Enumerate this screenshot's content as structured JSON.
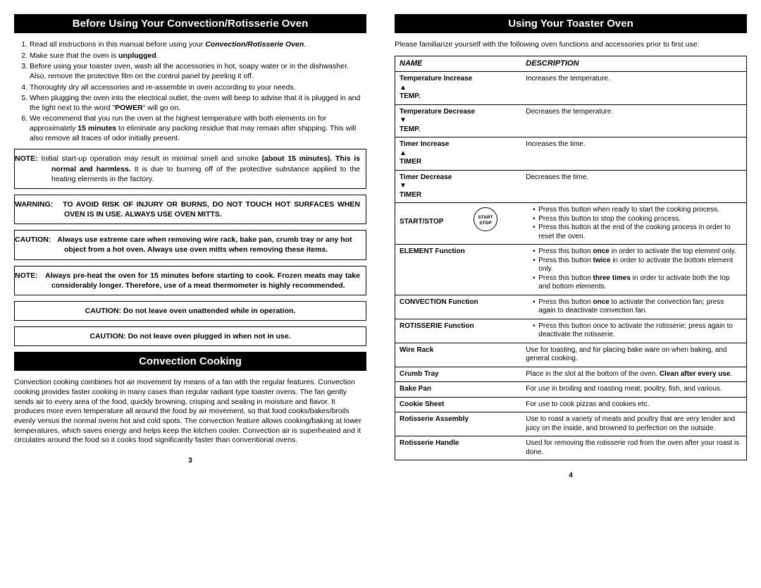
{
  "left": {
    "header1": "Before Using Your Convection/Rotisserie Oven",
    "instructions": [
      {
        "pre": "Read all instructions in this manual before using your ",
        "bold_italic": "Convection/Rotisserie Oven",
        "post": "."
      },
      {
        "pre": "Make sure that the oven is ",
        "bold": "unplugged",
        "post": "."
      },
      {
        "text": "Before using your toaster oven, wash all the accessories in hot, soapy water or in the dishwasher.  Also, remove the protective film on the control panel by peeling it off."
      },
      {
        "text": "Thoroughly dry all accessories and re-assemble in oven according to your needs."
      },
      {
        "pre": "When plugging the oven into the electrical outlet, the oven will beep to advise that it is plugged in and the light next to the word \"",
        "bold": "POWER",
        "post": "\" will go on."
      },
      {
        "pre": "We recommend that you run the oven at the highest temperature with both elements on for approximately ",
        "bold": "15 minutes",
        "post": " to eliminate any packing residue that may remain after shipping. This will also remove all traces of odor initially present."
      }
    ],
    "note1_label": "NOTE:",
    "note1_line1": "Initial start-up operation may result in minimal smell and smoke ",
    "note1_bold": "(about 15 minutes). This is normal and harmless.",
    "note1_line2": "  It is due to burning off of the protective substance applied  to the heating elements in the factory.",
    "warning_label": "WARNING:",
    "warning_text": "TO AVOID RISK OF INJURY OR BURNS, DO NOT TOUCH HOT SURFACES WHEN OVEN IS IN USE. ALWAYS USE OVEN MITTS.",
    "caution1_label": "CAUTION:",
    "caution1_text": "Always use extreme care when removing wire rack, bake pan, crumb tray or any hot object from a hot oven. Always use oven mitts when removing these items.",
    "note2_label": "NOTE:",
    "note2_text": "Always pre-heat the oven for 15 minutes before starting to cook. Frozen meats may take considerably longer.  Therefore, use of a meat thermometer is highly recommended.",
    "caution2": "CAUTION:  Do not leave oven unattended while in operation.",
    "caution3": "CAUTION:  Do not leave oven plugged in when not in use.",
    "header2": "Convection Cooking",
    "body": "Convection cooking combines hot air movement by means of a fan with the regular features. Convection cooking provides faster cooking in many cases than regular radiant type toaster ovens. The fan gently sends air to every area of the food, quickly browning, crisping and sealing in moisture and flavor. It produces more even temperature all around the food by air movement, so that food cooks/bakes/broils evenly versus the normal ovens hot and cold spots. The convection feature allows cooking/baking at lower temperatures, which saves energy and helps keep the kitchen cooler. Convection air is superheated and it circulates around the food so it cooks food significantly faster than conventional ovens.",
    "page_num": "3"
  },
  "right": {
    "header": "Using Your Toaster Oven",
    "intro": "Please familiarize yourself with the following oven functions and accessories prior to first use:",
    "name_header": "NAME",
    "desc_header": "DESCRIPTION",
    "rows": [
      {
        "name": "Temperature Increase",
        "sym": "▲",
        "sub": "TEMP.",
        "desc": "Increases the temperature."
      },
      {
        "name": "Temperature Decrease",
        "sym": "▼",
        "sub": "TEMP.",
        "desc": "Decreases the temperature."
      },
      {
        "name": "Timer Increase",
        "sym": "▲",
        "sub": "TIMER",
        "desc": "Increases the time."
      },
      {
        "name": "Timer Decrease",
        "sym": "▼",
        "sub": "TIMER",
        "desc": "Decreases the time."
      }
    ],
    "startstop_name": "START/STOP",
    "startstop_btn1": "START",
    "startstop_btn2": "STOP",
    "startstop_b1": "Press this button when ready to start the cooking process.",
    "startstop_b2": "Press this button to stop the cooking process.",
    "startstop_b3": "Press this button at the end of the cooking process in order to reset the oven.",
    "element_name": "ELEMENT Function",
    "element_b1a": "Press this button ",
    "element_b1b": "once",
    "element_b1c": " in order to activate the top element only.",
    "element_b2a": "Press this button ",
    "element_b2b": "twice",
    "element_b2c": " in order to activate the bottom element only.",
    "element_b3a": "Press this button ",
    "element_b3b": "three times",
    "element_b3c": " in order to activate both the top and bottom elements.",
    "convection_name": "CONVECTION Function",
    "convection_b1a": "Press this button ",
    "convection_b1b": "once",
    "convection_b1c": " to activate the convection fan; press again to deactivate convection fan.",
    "rotisserie_name": "ROTISSERIE Function",
    "rotisserie_b1": "Press this button once to activate the rotisserie; press again to deactivate the rotisserie.",
    "wire_name": "Wire Rack",
    "wire_desc": "Use for toasting, and for placing bake ware on when baking, and general cooking.",
    "crumb_name": "Crumb Tray",
    "crumb_desc_a": "Place in the slot at the bottom of the oven. ",
    "crumb_desc_b": "Clean after every use",
    "crumb_desc_c": ".",
    "bake_name": "Bake Pan",
    "bake_desc": "For use in broiling and roasting meat, poultry, fish, and various.",
    "cookie_name": "Cookie Sheet",
    "cookie_desc": "For use to cook pizzas and cookies etc.",
    "rotassy_name": "Rotisserie Assembly",
    "rotassy_desc": "Use to roast a variety of meats and poultry that are very tender and juicy on the inside, and browned to perfection on the outside.",
    "rothandle_name": "Rotisserie Handle",
    "rothandle_desc": "Used for removing the rotisserie rod from the oven after your roast is done.",
    "page_num": "4"
  }
}
